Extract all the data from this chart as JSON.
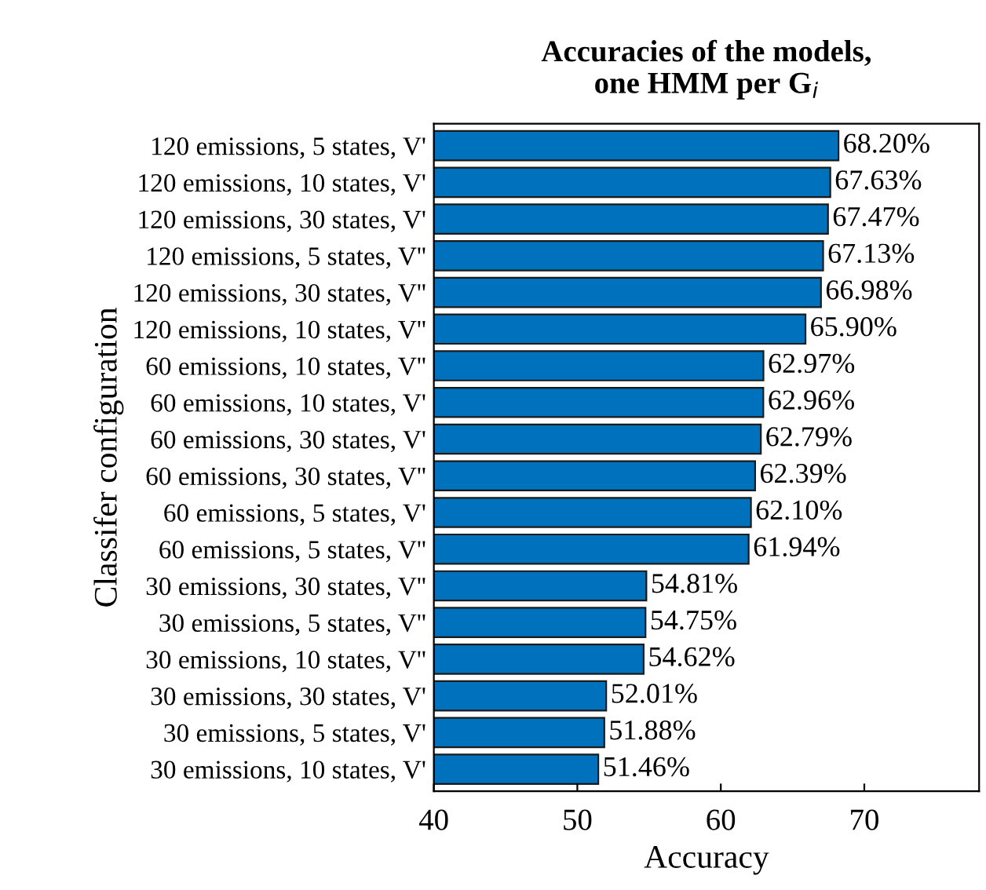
{
  "chart_data": {
    "type": "bar",
    "orientation": "horizontal",
    "title": "Accuracies of the models,\none HMM per G$_{i}$",
    "xlabel": "Accuracy",
    "ylabel": "Classifer configuration",
    "categories": [
      "120 emissions, 5 states, V'",
      "120 emissions, 10 states, V'",
      "120 emissions, 30 states, V'",
      "120 emissions, 5 states, V''",
      "120 emissions, 30 states, V''",
      "120 emissions, 10 states, V''",
      "60 emissions, 10 states, V''",
      "60 emissions, 10 states, V'",
      "60 emissions, 30 states, V'",
      "60 emissions, 30 states, V''",
      "60 emissions, 5 states, V'",
      "60 emissions, 5 states, V''",
      "30 emissions, 30 states, V''",
      "30 emissions, 5 states, V''",
      "30 emissions, 10 states, V''",
      "30 emissions, 30 states, V'",
      "30 emissions, 5 states, V'",
      "30 emissions, 10 states, V'"
    ],
    "values": [
      68.2,
      67.63,
      67.47,
      67.13,
      66.98,
      65.9,
      62.97,
      62.96,
      62.79,
      62.39,
      62.1,
      61.94,
      54.81,
      54.75,
      54.62,
      52.01,
      51.88,
      51.46
    ],
    "value_labels": [
      "68.20%",
      "67.63%",
      "67.47%",
      "67.13%",
      "66.98%",
      "65.90%",
      "62.97%",
      "62.96%",
      "62.79%",
      "62.39%",
      "62.10%",
      "61.94%",
      "54.81%",
      "54.75%",
      "54.62%",
      "52.01%",
      "51.88%",
      "51.46%"
    ],
    "color": "#0072bd",
    "xlim": [
      40,
      78
    ],
    "xticks": [
      40,
      50,
      60,
      70
    ],
    "grid": false,
    "legend": false
  }
}
